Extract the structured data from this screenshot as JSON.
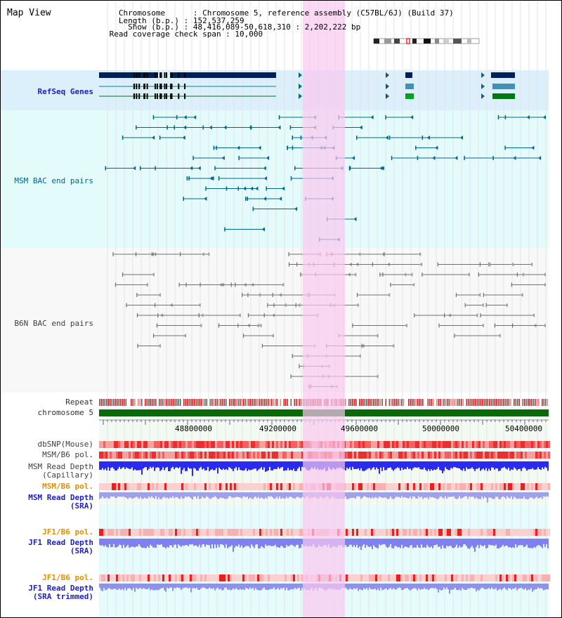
{
  "header": {
    "view_title": "Map View",
    "info_lines": [
      "   Chromosome      : Chromosome 5, reference assembly (C57BL/6J) (Build 37)",
      "   Length (b.p.) : 152,537,259",
      "     Show (b.p.) : 48,416,089-50,618,310 : 2,202,222 bp",
      " Read coverage check span : 10,000"
    ]
  },
  "tracks": {
    "refseq": "RefSeq Genes",
    "msm_bac": "MSM BAC end pairs",
    "b6n_bac": "B6N BAC end pairs",
    "repeat": "Repeat",
    "chromosome": "chromosome 5",
    "dbsnp": "dbSNP(Mouse)",
    "msm_b6_pol": "MSM/B6 pol.",
    "msm_depth_cap_1": "MSM Read Depth",
    "msm_depth_cap_2": "(Capillary)",
    "msm_b6_pol_2": "MSM/B6 pol.",
    "msm_depth_sra_1": "MSM Read Depth",
    "msm_depth_sra_2": "(SRA)",
    "jf1_b6_pol": "JF1/B6 pol.",
    "jf1_depth_1": "JF1 Read Depth",
    "jf1_depth_2": "(SRA)",
    "jf1_b6_pol_2": "JF1/B6 pol.",
    "jf1_trim_1": "JF1 Read Depth",
    "jf1_trim_2": "(SRA trimmed)"
  },
  "axis": {
    "ticks": [
      "48800000",
      "49200000",
      "49600000",
      "50000000",
      "50400000"
    ]
  },
  "colors": {
    "highlight": "#f8c8f0",
    "gene": "#00205a",
    "msm": "#006688",
    "b6n": "#707070",
    "chromosome": "#0a6a0a",
    "depth_blue": "#2a2af0",
    "depth_light": "#8080f0"
  }
}
